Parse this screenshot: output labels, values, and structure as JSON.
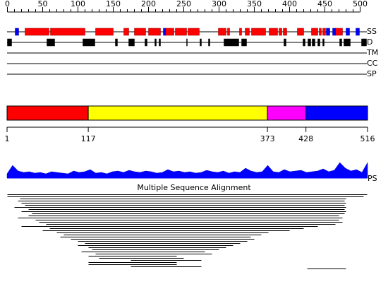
{
  "ruler": {
    "ticks": [
      0,
      50,
      100,
      150,
      200,
      250,
      300,
      350,
      400,
      450,
      500
    ]
  },
  "tracks": {
    "ss": {
      "label": "SS",
      "helices": [
        [
          25,
          59
        ],
        [
          61,
          110
        ],
        [
          125,
          150
        ],
        [
          165,
          172
        ],
        [
          180,
          196
        ],
        [
          200,
          217
        ],
        [
          224,
          236
        ],
        [
          238,
          254
        ],
        [
          256,
          272
        ],
        [
          299,
          310
        ],
        [
          312,
          315
        ],
        [
          329,
          332
        ],
        [
          337,
          343
        ],
        [
          346,
          366
        ],
        [
          371,
          383
        ],
        [
          385,
          389
        ],
        [
          391,
          396
        ],
        [
          411,
          420
        ],
        [
          431,
          440
        ],
        [
          442,
          445
        ],
        [
          447,
          451
        ],
        [
          465,
          475
        ]
      ],
      "strands": [
        [
          11,
          16
        ],
        [
          221,
          224
        ],
        [
          452,
          457
        ],
        [
          461,
          465
        ],
        [
          480,
          485
        ],
        [
          494,
          499
        ]
      ]
    },
    "d": {
      "label": "D",
      "regions": [
        [
          0,
          6
        ],
        [
          56,
          67
        ],
        [
          107,
          124
        ],
        [
          153,
          156
        ],
        [
          172,
          180
        ],
        [
          195,
          198
        ],
        [
          209,
          211
        ],
        [
          215,
          217
        ],
        [
          254,
          255
        ],
        [
          273,
          275
        ],
        [
          285,
          287
        ],
        [
          307,
          328
        ],
        [
          332,
          339
        ],
        [
          392,
          395
        ],
        [
          419,
          422
        ],
        [
          426,
          430
        ],
        [
          432,
          436
        ],
        [
          440,
          443
        ],
        [
          447,
          449
        ],
        [
          471,
          474
        ],
        [
          477,
          486
        ],
        [
          502,
          509
        ]
      ]
    },
    "tm": {
      "label": "TM"
    },
    "cc": {
      "label": "CC"
    },
    "sp": {
      "label": "SP"
    }
  },
  "domains": {
    "boundaries": [
      1,
      117,
      373,
      428,
      516
    ],
    "colors": [
      "#ff0000",
      "#ffff00",
      "#ff00ff",
      "#0000ff"
    ]
  },
  "ps": {
    "label": "PS",
    "values": [
      6,
      18,
      10,
      8,
      9,
      7,
      8,
      6,
      9,
      8,
      7,
      6,
      10,
      8,
      9,
      12,
      7,
      8,
      6,
      9,
      10,
      8,
      11,
      9,
      8,
      10,
      9,
      7,
      8,
      12,
      9,
      10,
      8,
      9,
      7,
      8,
      11,
      9,
      8,
      10,
      7,
      9,
      8,
      14,
      10,
      8,
      9,
      18,
      9,
      8,
      12,
      9,
      10,
      11,
      8,
      9,
      10,
      13,
      9,
      11,
      22,
      14,
      10,
      12,
      8,
      22
    ]
  },
  "msa": {
    "title": "Multiple Sequence Alignment",
    "spans": [
      [
        0,
        510
      ],
      [
        0,
        505
      ],
      [
        18,
        480
      ],
      [
        15,
        478
      ],
      [
        20,
        480
      ],
      [
        25,
        478
      ],
      [
        10,
        480
      ],
      [
        30,
        478
      ],
      [
        20,
        480
      ],
      [
        35,
        478
      ],
      [
        30,
        470
      ],
      [
        15,
        475
      ],
      [
        40,
        470
      ],
      [
        45,
        475
      ],
      [
        55,
        465
      ],
      [
        20,
        440
      ],
      [
        60,
        420
      ],
      [
        50,
        400
      ],
      [
        70,
        370
      ],
      [
        80,
        360
      ],
      [
        75,
        345
      ],
      [
        90,
        350
      ],
      [
        100,
        340
      ],
      [
        110,
        330
      ],
      [
        100,
        320
      ],
      [
        115,
        310
      ],
      [
        120,
        300
      ],
      [
        105,
        280
      ],
      [
        125,
        290
      ],
      [
        115,
        240
      ],
      [
        130,
        250
      ],
      [
        175,
        275
      ],
      [
        115,
        240
      ],
      [
        115,
        240
      ],
      [
        175,
        275
      ],
      [
        425,
        480
      ]
    ]
  }
}
